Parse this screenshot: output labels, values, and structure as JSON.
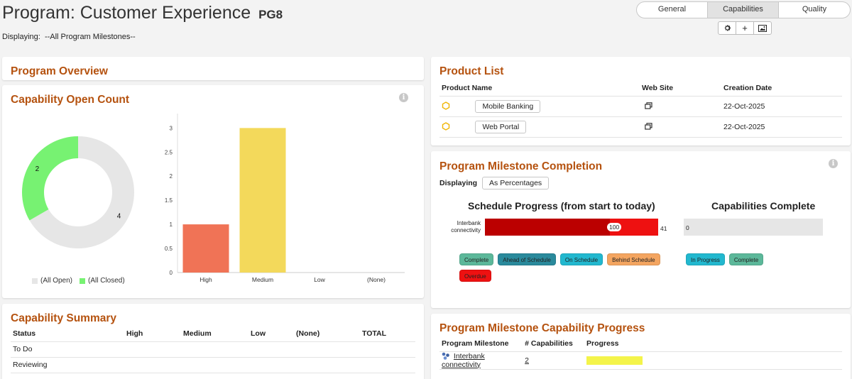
{
  "header": {
    "title": "Program: Customer Experience",
    "code": "PG8",
    "displaying_label": "Displaying:",
    "displaying_value": "--All Program Milestones--"
  },
  "tabs": [
    {
      "label": "General",
      "active": false
    },
    {
      "label": "Capabilities",
      "active": true
    },
    {
      "label": "Quality",
      "active": false
    }
  ],
  "toolbar": {
    "settings_icon": "gear-icon",
    "add_label": "+",
    "image_icon": "image-icon"
  },
  "program_overview": {
    "title": "Program Overview"
  },
  "capability_open_count": {
    "title": "Capability Open Count",
    "info": "i",
    "donut": {
      "slices": [
        {
          "label": "(All Open)",
          "value": 4,
          "color": "#e6e6e6"
        },
        {
          "label": "(All Closed)",
          "value": 2,
          "color": "#77f272"
        }
      ]
    },
    "chart_data": {
      "type": "bar",
      "categories": [
        "High",
        "Medium",
        "Low",
        "(None)"
      ],
      "values": [
        1,
        3,
        0,
        0
      ],
      "colors": [
        "#f07356",
        "#f3d95b",
        "#cccccc",
        "#cccccc"
      ],
      "yticks": [
        "0",
        "0.5",
        "1",
        "1.5",
        "2",
        "2.5",
        "3"
      ],
      "ylim": [
        0,
        3.3
      ]
    }
  },
  "capability_summary": {
    "title": "Capability Summary",
    "columns": [
      "Status",
      "High",
      "Medium",
      "Low",
      "(None)",
      "TOTAL"
    ],
    "rows": [
      "To Do",
      "Reviewing"
    ]
  },
  "product_list": {
    "title": "Product List",
    "columns": [
      "Product Name",
      "Web Site",
      "Creation Date"
    ],
    "rows": [
      {
        "name": "Mobile Banking",
        "date": "22-Oct-2025"
      },
      {
        "name": "Web Portal",
        "date": "22-Oct-2025"
      }
    ]
  },
  "milestone_completion": {
    "title": "Program Milestone Completion",
    "info": "i",
    "displaying_label": "Displaying",
    "displaying_value": "As Percentages",
    "schedule": {
      "title": "Schedule Progress (from start to today)",
      "milestone": "Interbank connectivity",
      "progress_value": "100",
      "end_value": "41",
      "legend": [
        {
          "label": "Complete",
          "color": "#5cb89a"
        },
        {
          "label": "Ahead of Schedule",
          "color": "#2a8a9c"
        },
        {
          "label": "On Schedule",
          "color": "#22b8cf"
        },
        {
          "label": "Behind Schedule",
          "color": "#f4a560"
        },
        {
          "label": "Overdue",
          "color": "#ee1111"
        }
      ]
    },
    "capabilities": {
      "title": "Capabilities Complete",
      "value": "0",
      "legend": [
        {
          "label": "In Progress",
          "color": "#22b8cf"
        },
        {
          "label": "Complete",
          "color": "#5cb89a"
        }
      ]
    }
  },
  "capability_progress": {
    "title": "Program Milestone Capability Progress",
    "columns": [
      "Program Milestone",
      "# Capabilities",
      "Progress"
    ],
    "rows": [
      {
        "milestone": "Interbank connectivity",
        "count": "2",
        "progress": 0.22,
        "progress_color": "#f4f44a"
      }
    ]
  }
}
